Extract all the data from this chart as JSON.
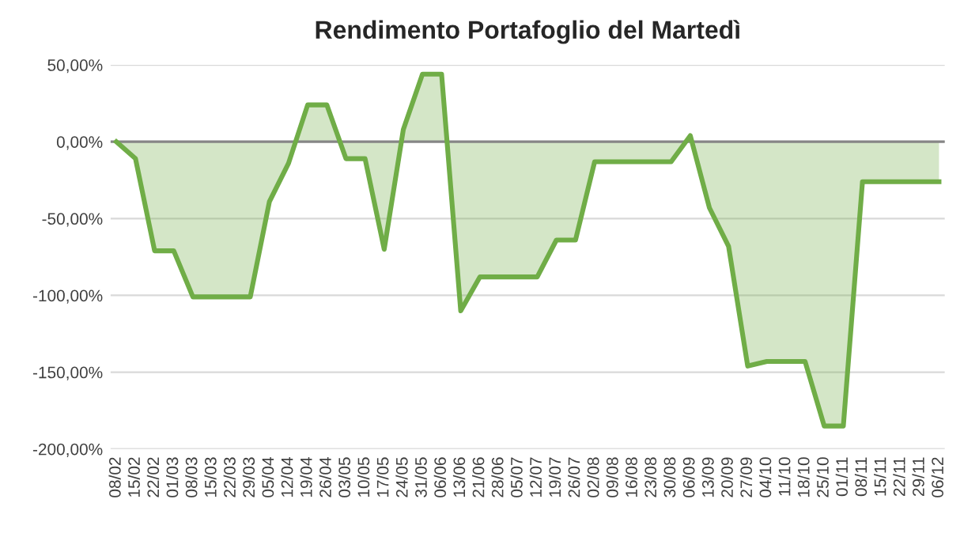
{
  "chart_data": {
    "type": "area",
    "title": "Rendimento Portafoglio del Martedì",
    "categories": [
      "08/02",
      "15/02",
      "22/02",
      "01/03",
      "08/03",
      "15/03",
      "22/03",
      "29/03",
      "05/04",
      "12/04",
      "19/04",
      "26/04",
      "03/05",
      "10/05",
      "17/05",
      "24/05",
      "31/05",
      "06/06",
      "13/06",
      "21/06",
      "28/06",
      "05/07",
      "12/07",
      "19/07",
      "26/07",
      "02/08",
      "09/08",
      "16/08",
      "23/08",
      "30/08",
      "06/09",
      "13/09",
      "20/09",
      "27/09",
      "04/10",
      "11/10",
      "18/10",
      "25/10",
      "01/11",
      "08/11",
      "15/11",
      "22/11",
      "29/11",
      "06/12"
    ],
    "series": [
      {
        "color": "#70ad47",
        "values": [
          0,
          -11,
          -71,
          -71,
          -101,
          -101,
          -101,
          -101,
          -39,
          -14,
          24,
          24,
          -11,
          -11,
          -70,
          8,
          44,
          44,
          -110,
          -88,
          -88,
          -88,
          -88,
          -64,
          -64,
          -13,
          -13,
          -13,
          -13,
          -13,
          4,
          -43,
          -68,
          -146,
          -143,
          -143,
          -143,
          -185,
          -185,
          -26,
          -26,
          -26,
          -26,
          -26
        ]
      }
    ],
    "ylim": [
      -200,
      50
    ],
    "yticks": [
      {
        "value": -200,
        "label": "-200,00%"
      },
      {
        "value": -150,
        "label": "-150,00%"
      },
      {
        "value": -100,
        "label": "-100,00%"
      },
      {
        "value": -50,
        "label": "-50,00%"
      },
      {
        "value": 0,
        "label": "0,00%"
      },
      {
        "value": 50,
        "label": "50,00%"
      }
    ],
    "ref_lines": [
      {
        "axis": "y",
        "value": 0,
        "color": "#868686"
      }
    ],
    "grid": "y",
    "legend": false
  }
}
